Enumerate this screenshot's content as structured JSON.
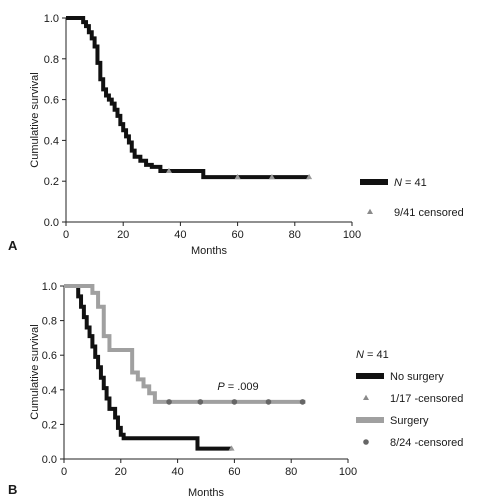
{
  "chart_data": [
    {
      "panel": "A",
      "type": "line",
      "step": true,
      "xlabel": "Months",
      "ylabel": "Cumulative survival",
      "xlim": [
        0,
        100
      ],
      "ylim": [
        0,
        1.0
      ],
      "xticks": [
        "0",
        "20",
        "40",
        "60",
        "80",
        "100"
      ],
      "yticks": [
        "0.0",
        "0.2",
        "0.4",
        "0.6",
        "0.8",
        "1.0"
      ],
      "grid": false,
      "legend_position": "right",
      "legend": [
        {
          "label_prefix": "N",
          "label_suffix": " = 41",
          "marker": "thick-line",
          "color": "#111111"
        },
        {
          "label": "9/41 censored",
          "marker": "triangle",
          "color": "#8a8a8a"
        }
      ],
      "series": [
        {
          "color": "#111111",
          "x": [
            0,
            6,
            7,
            8,
            9,
            10,
            11,
            12,
            13,
            14,
            15,
            16,
            17,
            18,
            19,
            20,
            21,
            22,
            23,
            24,
            26,
            28,
            30,
            33,
            48,
            85
          ],
          "y": [
            1.0,
            0.98,
            0.96,
            0.93,
            0.9,
            0.86,
            0.78,
            0.7,
            0.65,
            0.62,
            0.6,
            0.58,
            0.55,
            0.52,
            0.48,
            0.45,
            0.42,
            0.39,
            0.35,
            0.32,
            0.3,
            0.28,
            0.27,
            0.25,
            0.22,
            0.22
          ],
          "censored_x": [
            36,
            60,
            72,
            85
          ],
          "censored_y": [
            0.25,
            0.22,
            0.22,
            0.22
          ]
        }
      ]
    },
    {
      "panel": "B",
      "type": "line",
      "step": true,
      "xlabel": "Months",
      "ylabel": "Cumulative survival",
      "xlim": [
        0,
        100
      ],
      "ylim": [
        0,
        1.0
      ],
      "xticks": [
        "0",
        "20",
        "40",
        "60",
        "80",
        "100"
      ],
      "yticks": [
        "0.0",
        "0.2",
        "0.4",
        "0.6",
        "0.8",
        "1.0"
      ],
      "grid": false,
      "annotation": {
        "prefix": "P",
        "text": " = .009",
        "x": 54,
        "y": 0.4
      },
      "legend_position": "right",
      "legend": [
        {
          "label_prefix": "N",
          "label_suffix": " = 41",
          "marker": "none"
        },
        {
          "label": "No surgery",
          "marker": "thick-line",
          "color": "#111111"
        },
        {
          "label": "1/17 -censored",
          "marker": "triangle",
          "color": "#8a8a8a"
        },
        {
          "label": "Surgery",
          "marker": "thick-line",
          "color": "#a0a0a0"
        },
        {
          "label": "8/24 -censored",
          "marker": "circle",
          "color": "#666666"
        }
      ],
      "series": [
        {
          "name": "No surgery",
          "color": "#111111",
          "x": [
            0,
            5,
            6,
            7,
            8,
            9,
            10,
            11,
            12,
            13,
            14,
            15,
            16,
            18,
            19,
            20,
            21,
            22,
            47,
            59
          ],
          "y": [
            1.0,
            0.94,
            0.88,
            0.82,
            0.76,
            0.71,
            0.65,
            0.59,
            0.53,
            0.47,
            0.41,
            0.35,
            0.29,
            0.24,
            0.18,
            0.14,
            0.12,
            0.12,
            0.06,
            0.06
          ],
          "censored_x": [
            59
          ],
          "censored_y": [
            0.06
          ]
        },
        {
          "name": "Surgery",
          "color": "#a0a0a0",
          "x": [
            0,
            10,
            12,
            14,
            16,
            24,
            26,
            28,
            30,
            32,
            85
          ],
          "y": [
            1.0,
            0.96,
            0.88,
            0.71,
            0.63,
            0.5,
            0.46,
            0.42,
            0.38,
            0.33,
            0.33
          ],
          "censored_x": [
            37,
            48,
            60,
            72,
            84
          ],
          "censored_y": [
            0.33,
            0.33,
            0.33,
            0.33,
            0.33
          ]
        }
      ]
    }
  ]
}
